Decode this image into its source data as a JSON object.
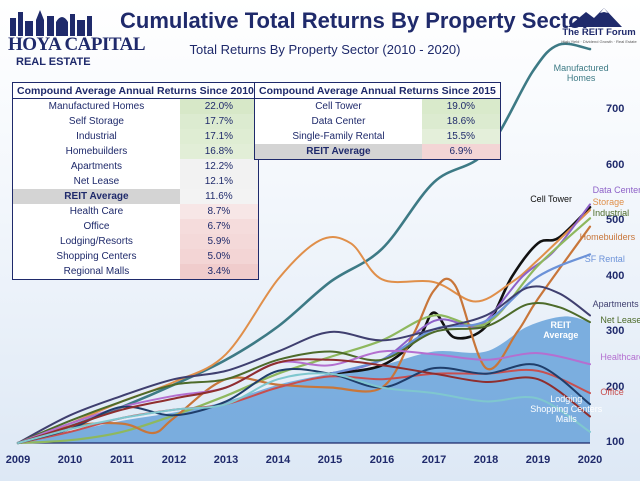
{
  "header": {
    "title": "Cumulative Total Returns By Property Sector",
    "subtitle": "Total Returns By Property Sector (2010 - 2020)",
    "logo_main": "HOYA CAPITAL",
    "logo_sub": "REAL ESTATE",
    "forum_title": "The REIT Forum",
    "forum_tagline": "High Yield · Dividend Growth · Real Estate"
  },
  "table_2010": {
    "header": "Compound Average Annual Returns Since 2010",
    "rows": [
      {
        "name": "Manufactured Homes",
        "value": "22.0%",
        "color": "#d7e8c8"
      },
      {
        "name": "Self Storage",
        "value": "17.7%",
        "color": "#dcebd0"
      },
      {
        "name": "Industrial",
        "value": "17.1%",
        "color": "#dfedd3"
      },
      {
        "name": "Homebuilders",
        "value": "16.8%",
        "color": "#e2eed7"
      },
      {
        "name": "Apartments",
        "value": "12.2%",
        "color": "#f2f2f2"
      },
      {
        "name": "Net Lease",
        "value": "12.1%",
        "color": "#f2f2f2"
      },
      {
        "name": "REIT Average",
        "value": "11.6%",
        "color": "#f3f3f3",
        "avg": true
      },
      {
        "name": "Health Care",
        "value": "8.7%",
        "color": "#f7e6e6"
      },
      {
        "name": "Office",
        "value": "6.7%",
        "color": "#f5dcdc"
      },
      {
        "name": "Lodging/Resorts",
        "value": "5.9%",
        "color": "#f4d9d9"
      },
      {
        "name": "Shopping Centers",
        "value": "5.0%",
        "color": "#f3d5d5"
      },
      {
        "name": "Regional Malls",
        "value": "3.4%",
        "color": "#f0cccc"
      }
    ]
  },
  "table_2015": {
    "header": "Compound Average Annual Returns Since 2015",
    "rows": [
      {
        "name": "Cell Tower",
        "value": "19.0%",
        "color": "#d9eacb"
      },
      {
        "name": "Data Center",
        "value": "18.6%",
        "color": "#dcebd0"
      },
      {
        "name": "Single-Family Rental",
        "value": "15.5%",
        "color": "#e4efda"
      },
      {
        "name": "REIT Average",
        "value": "6.9%",
        "color": "#f3d5d5",
        "avg": true
      }
    ]
  },
  "chart_data": {
    "type": "line",
    "title": "Cumulative Total Returns By Property Sector",
    "subtitle": "Total Returns By Property Sector (2010 - 2020)",
    "x_ticks": [
      "2009",
      "2010",
      "2011",
      "2012",
      "2013",
      "2014",
      "2015",
      "2016",
      "2017",
      "2018",
      "2019",
      "2020"
    ],
    "y_ticks": [
      100,
      200,
      300,
      400,
      500,
      600,
      700
    ],
    "ylim": [
      100,
      830
    ],
    "xlim": [
      2009,
      2020
    ],
    "area_series": {
      "name": "REIT Average",
      "color": "#6fa6dc",
      "x": [
        2009,
        2010,
        2011,
        2012,
        2013,
        2014,
        2015,
        2016,
        2017,
        2018,
        2018.8,
        2019.5,
        2020
      ],
      "values": [
        100,
        120,
        140,
        155,
        175,
        205,
        225,
        240,
        265,
        265,
        310,
        328,
        318
      ]
    },
    "series": [
      {
        "name": "Manufactured Homes",
        "color": "#3d7a85",
        "width": 2.6,
        "x": [
          2009,
          2010,
          2011,
          2012,
          2013,
          2014,
          2015,
          2016,
          2017,
          2018,
          2018.9,
          2019.4,
          2020
        ],
        "values": [
          100,
          130,
          165,
          205,
          250,
          310,
          390,
          450,
          570,
          625,
          770,
          818,
          810
        ]
      },
      {
        "name": "Cell Tower",
        "color": "#111111",
        "width": 2.6,
        "x": [
          2015,
          2016,
          2016.7,
          2017,
          2017.4,
          2018,
          2018.5,
          2019,
          2019.4,
          2020
        ],
        "values": [
          225,
          240,
          290,
          335,
          290,
          310,
          400,
          460,
          470,
          525
        ]
      },
      {
        "name": "Self Storage",
        "color": "#e08f4a",
        "width": 2.0,
        "x": [
          2009,
          2010,
          2011,
          2012,
          2013,
          2014,
          2014.8,
          2015.4,
          2016,
          2017,
          2017.8,
          2018.5,
          2019,
          2020
        ],
        "values": [
          100,
          135,
          175,
          210,
          260,
          395,
          465,
          460,
          395,
          390,
          355,
          390,
          430,
          520
        ]
      },
      {
        "name": "Data Center",
        "color": "#8e62c8",
        "width": 2.0,
        "x": [
          2015,
          2016,
          2017,
          2017.7,
          2018,
          2018.7,
          2019.3,
          2020
        ],
        "values": [
          225,
          250,
          320,
          310,
          320,
          400,
          445,
          530
        ]
      },
      {
        "name": "Industrial",
        "color": "#8eb85e",
        "width": 2.2,
        "x": [
          2009,
          2010,
          2011,
          2012,
          2013,
          2014,
          2015,
          2016,
          2017,
          2018,
          2019,
          2020
        ],
        "values": [
          100,
          105,
          120,
          150,
          185,
          225,
          255,
          285,
          330,
          315,
          420,
          505
        ]
      },
      {
        "name": "Homebuilders",
        "color": "#c8763a",
        "width": 2.2,
        "x": [
          2009,
          2010,
          2011,
          2011.6,
          2012,
          2013,
          2014,
          2015,
          2016,
          2016.6,
          2017,
          2017.4,
          2018,
          2018.6,
          2019,
          2020
        ],
        "values": [
          100,
          130,
          135,
          118,
          145,
          215,
          205,
          200,
          200,
          295,
          375,
          385,
          235,
          300,
          360,
          490
        ]
      },
      {
        "name": "SF Rental",
        "color": "#6b92d8",
        "width": 2.2,
        "x": [
          2015,
          2016,
          2017,
          2018,
          2019,
          2020
        ],
        "values": [
          225,
          250,
          305,
          320,
          400,
          440
        ]
      },
      {
        "name": "Apartments",
        "color": "#3f3f6f",
        "width": 2.0,
        "x": [
          2009,
          2010,
          2011,
          2012,
          2013,
          2014,
          2015,
          2016,
          2017,
          2018,
          2018.8,
          2019.4,
          2020
        ],
        "values": [
          100,
          150,
          185,
          215,
          230,
          265,
          300,
          285,
          305,
          330,
          380,
          370,
          330
        ]
      },
      {
        "name": "Net Lease",
        "color": "#4d6b2a",
        "width": 2.0,
        "x": [
          2009,
          2010,
          2011,
          2012,
          2013,
          2014,
          2015,
          2016,
          2017,
          2018,
          2018.8,
          2019.4,
          2020
        ],
        "values": [
          100,
          140,
          175,
          205,
          215,
          250,
          265,
          250,
          300,
          310,
          350,
          345,
          318
        ]
      },
      {
        "name": "Health Care",
        "color": "#b46fd0",
        "width": 2.0,
        "x": [
          2009,
          2010,
          2011,
          2012,
          2013,
          2014,
          2015,
          2016,
          2017,
          2018,
          2019,
          2020
        ],
        "values": [
          100,
          135,
          165,
          185,
          200,
          245,
          240,
          265,
          260,
          250,
          262,
          242
        ]
      },
      {
        "name": "Office",
        "color": "#c74f4f",
        "width": 2.0,
        "x": [
          2009,
          2010,
          2011,
          2012,
          2013,
          2014,
          2015,
          2016,
          2017,
          2018,
          2019,
          2020
        ],
        "values": [
          100,
          120,
          145,
          160,
          170,
          200,
          220,
          215,
          225,
          225,
          230,
          190
        ]
      },
      {
        "name": "Lodging",
        "color": "#1f3e6b",
        "width": 2.0,
        "x": [
          2009,
          2010,
          2011,
          2012,
          2013,
          2014,
          2015,
          2016,
          2017,
          2018,
          2019,
          2020
        ],
        "values": [
          100,
          125,
          165,
          150,
          175,
          230,
          225,
          200,
          235,
          225,
          240,
          170
        ]
      },
      {
        "name": "Shopping Centers",
        "color": "#8f2e2e",
        "width": 2.0,
        "x": [
          2009,
          2010,
          2011,
          2012,
          2013,
          2014,
          2015,
          2016,
          2017,
          2018,
          2019,
          2020
        ],
        "values": [
          100,
          130,
          160,
          180,
          200,
          245,
          250,
          240,
          225,
          210,
          215,
          148
        ]
      },
      {
        "name": "Malls",
        "color": "#7fc7cf",
        "width": 2.0,
        "x": [
          2009,
          2010,
          2011,
          2012,
          2013,
          2014,
          2015,
          2016,
          2017,
          2018,
          2019,
          2020
        ],
        "values": [
          100,
          125,
          145,
          160,
          170,
          215,
          225,
          200,
          190,
          175,
          180,
          120
        ]
      }
    ],
    "right_labels": [
      {
        "text": "Manufactured\nHomes",
        "color": "#3d7a85",
        "value": 775,
        "x": 2019.3
      },
      {
        "text": "Cell Tower",
        "color": "#111111",
        "value": 538,
        "x": 2018.85
      },
      {
        "text": "Data Center",
        "color": "#8e62c8",
        "value": 554,
        "x": 2020.05
      },
      {
        "text": "Storage",
        "color": "#e08f4a",
        "value": 532,
        "x": 2020.05
      },
      {
        "text": "Industrial",
        "color": "#4d6b2a",
        "value": 512,
        "x": 2020.05
      },
      {
        "text": "Homebuilders",
        "color": "#c8763a",
        "value": 470,
        "x": 2019.8
      },
      {
        "text": "SF Rental",
        "color": "#6b92d8",
        "value": 430,
        "x": 2019.9
      },
      {
        "text": "Apartments",
        "color": "#3f3f6f",
        "value": 348,
        "x": 2020.05
      },
      {
        "text": "Net Lease",
        "color": "#4d6b2a",
        "value": 320,
        "x": 2020.2
      },
      {
        "text": "REIT\nAverage",
        "color": "#ffffff",
        "value": 310,
        "x": 2019.1,
        "bold": true
      },
      {
        "text": "Healthcare",
        "color": "#b46fd0",
        "value": 253,
        "x": 2020.2
      },
      {
        "text": "Office",
        "color": "#c74f4f",
        "value": 190,
        "x": 2020.2
      },
      {
        "text": "Lodging\nShopping Centers\nMalls",
        "color": "#ffffff",
        "value": 178,
        "x": 2018.85
      }
    ]
  }
}
